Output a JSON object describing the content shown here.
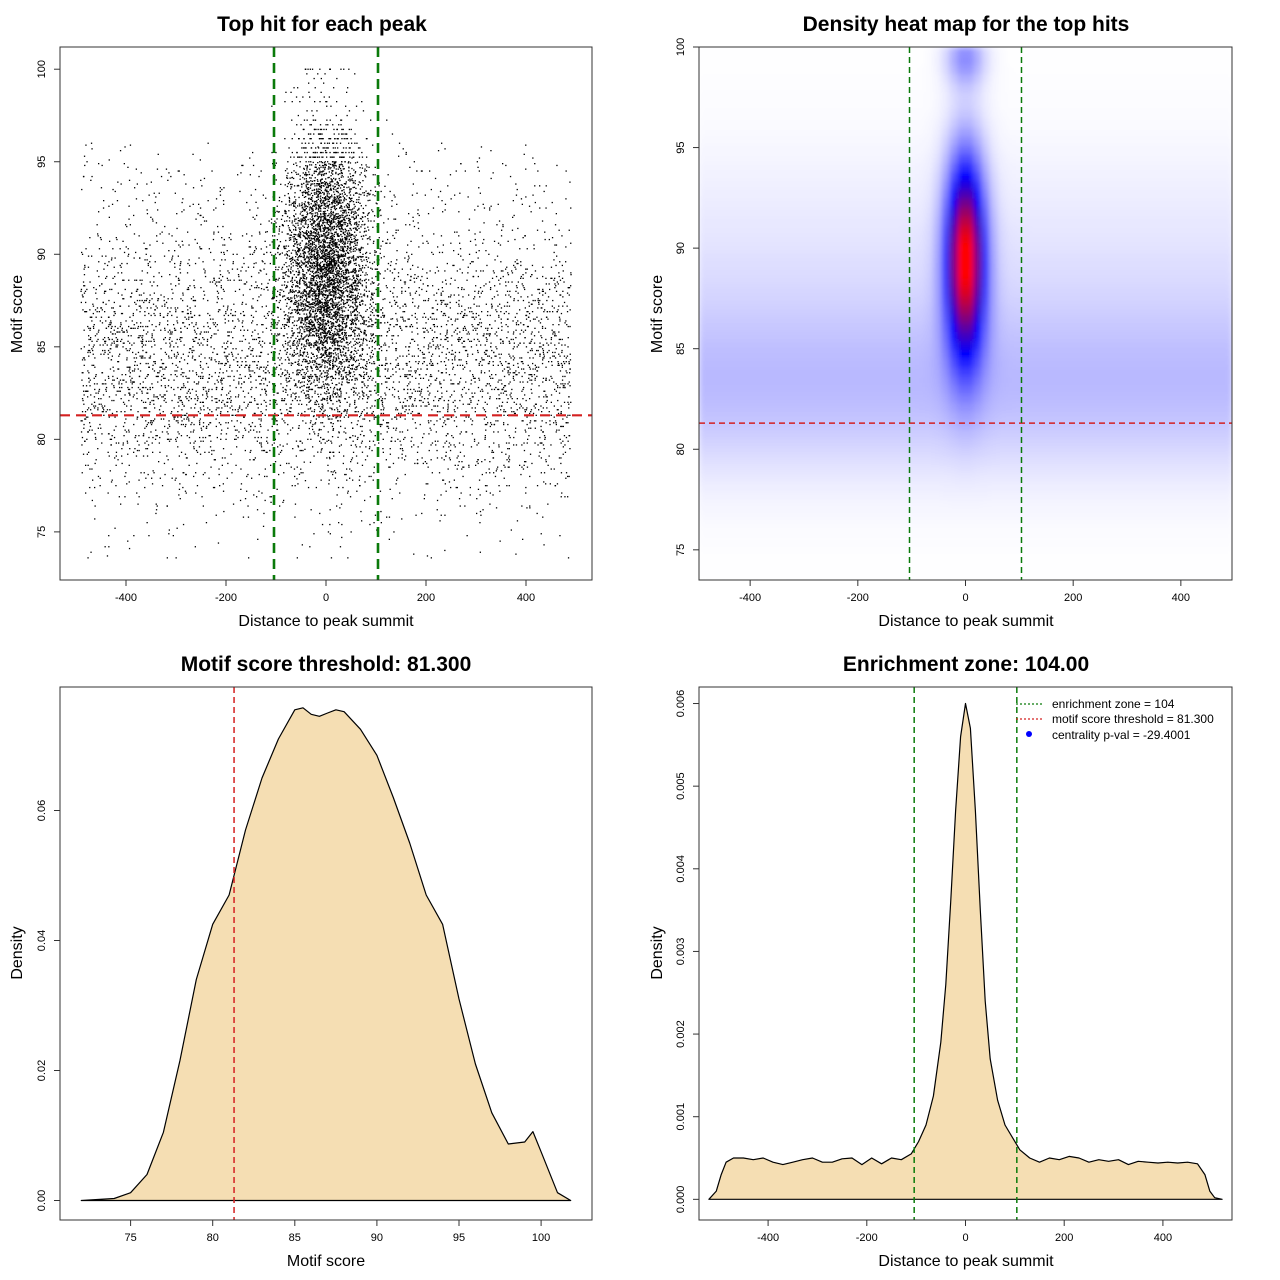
{
  "colors": {
    "threshold_red": "#d42020",
    "zone_green": "#0a7a0a",
    "density_fill": "#f5deb3",
    "points": "#000000",
    "heat_low": "#ffffff",
    "heat_mid": "#0000ff",
    "heat_high": "#ff0000",
    "legend_point": "#0000ff"
  },
  "chart_data": [
    {
      "id": "scatter",
      "type": "scatter",
      "title": "Top hit for each peak",
      "xlabel": "Distance to peak summit",
      "ylabel": "Motif score",
      "xlim": [
        -532,
        532
      ],
      "ylim": [
        72.4,
        101.2
      ],
      "xticks": [
        -400,
        -200,
        0,
        200,
        400
      ],
      "yticks": [
        75,
        80,
        85,
        90,
        95,
        100
      ],
      "threshold_y": 81.3,
      "zone_x": [
        -104,
        104
      ],
      "point_cloud": {
        "background_points": 5200,
        "central_points": 4600,
        "x_range": [
          -490,
          490
        ],
        "central_x_sd": 42,
        "score_range": [
          73.6,
          99.9
        ],
        "central_score_mean": 89.5,
        "central_score_sd": 3.6
      }
    },
    {
      "id": "heatmap",
      "type": "heatmap",
      "title": "Density heat map for the top hits",
      "xlabel": "Distance to peak summit",
      "ylabel": "Motif score",
      "xlim": [
        -495,
        495
      ],
      "ylim": [
        73.5,
        100
      ],
      "xticks": [
        -400,
        -200,
        0,
        200,
        400
      ],
      "yticks": [
        75,
        80,
        85,
        90,
        95,
        100
      ],
      "threshold_y": 81.3,
      "zone_x": [
        -104,
        104
      ],
      "peak": {
        "x": 0,
        "y": 89.5,
        "x_sd": 25,
        "y_sd": 3.4
      },
      "upper_tail": {
        "x": 0,
        "y": 99.5,
        "x_sd": 25,
        "y_sd": 1.0
      },
      "background": {
        "y": 83,
        "y_sd": 3
      }
    },
    {
      "id": "score_density",
      "type": "area",
      "title": "Motif score threshold: 81.300",
      "xlabel": "Motif score",
      "ylabel": "Density",
      "xlim": [
        70.7,
        103.1
      ],
      "ylim": [
        -0.003,
        0.079
      ],
      "xticks": [
        75,
        80,
        85,
        90,
        95,
        100
      ],
      "yticks": [
        0.0,
        0.02,
        0.04,
        0.06
      ],
      "ytick_labels": [
        "0.00",
        "0.02",
        "0.04",
        "0.06"
      ],
      "threshold_x": 81.3,
      "x": [
        72,
        74,
        75,
        76,
        77,
        78,
        79,
        80,
        81,
        82,
        83,
        84,
        85,
        85.5,
        86,
        86.5,
        87,
        87.5,
        88,
        89,
        90,
        91,
        92,
        93,
        94,
        95,
        96,
        97,
        98,
        99,
        99.5,
        100,
        101,
        101.8
      ],
      "y": [
        0.0,
        0.0003,
        0.0012,
        0.004,
        0.0105,
        0.0215,
        0.034,
        0.0425,
        0.047,
        0.057,
        0.065,
        0.071,
        0.0755,
        0.0758,
        0.0748,
        0.0745,
        0.075,
        0.0755,
        0.0752,
        0.0725,
        0.0685,
        0.062,
        0.055,
        0.047,
        0.0425,
        0.031,
        0.021,
        0.0135,
        0.0087,
        0.009,
        0.0106,
        0.0075,
        0.0012,
        0.0
      ]
    },
    {
      "id": "distance_density",
      "type": "area",
      "title": "Enrichment zone: 104.00",
      "xlabel": "Distance to peak summit",
      "ylabel": "Density",
      "xlim": [
        -540,
        540
      ],
      "ylim": [
        -0.00025,
        0.0062
      ],
      "xticks": [
        -400,
        -200,
        0,
        200,
        400
      ],
      "yticks": [
        0.0,
        0.001,
        0.002,
        0.003,
        0.004,
        0.005,
        0.006
      ],
      "ytick_labels": [
        "0.000",
        "0.001",
        "0.002",
        "0.003",
        "0.004",
        "0.005",
        "0.006"
      ],
      "zone_x": [
        -104,
        104
      ],
      "x": [
        -520,
        -505,
        -495,
        -485,
        -470,
        -450,
        -430,
        -410,
        -390,
        -370,
        -350,
        -330,
        -310,
        -290,
        -270,
        -250,
        -230,
        -210,
        -190,
        -170,
        -150,
        -130,
        -110,
        -95,
        -80,
        -65,
        -50,
        -40,
        -30,
        -20,
        -10,
        0,
        10,
        20,
        30,
        40,
        50,
        65,
        80,
        95,
        110,
        130,
        150,
        170,
        190,
        210,
        230,
        250,
        270,
        290,
        310,
        330,
        350,
        370,
        390,
        410,
        430,
        450,
        470,
        485,
        495,
        505,
        520
      ],
      "y": [
        0.0,
        0.0001,
        0.0003,
        0.00045,
        0.0005,
        0.0005,
        0.00048,
        0.0005,
        0.00045,
        0.00042,
        0.00045,
        0.00048,
        0.0005,
        0.00045,
        0.00045,
        0.00049,
        0.0005,
        0.00042,
        0.0005,
        0.00043,
        0.0005,
        0.00048,
        0.00055,
        0.0007,
        0.0009,
        0.00125,
        0.0019,
        0.0026,
        0.0036,
        0.0047,
        0.0056,
        0.006,
        0.0057,
        0.0047,
        0.0035,
        0.0024,
        0.0017,
        0.0012,
        0.0009,
        0.00075,
        0.0006,
        0.0005,
        0.00045,
        0.0005,
        0.00048,
        0.00052,
        0.0005,
        0.00045,
        0.00048,
        0.00046,
        0.00048,
        0.00042,
        0.00046,
        0.00045,
        0.00044,
        0.00045,
        0.00044,
        0.00045,
        0.00043,
        0.0003,
        0.0001,
        2e-05,
        0.0
      ],
      "legend": [
        {
          "label": "enrichment zone = 104",
          "style": "green-dotted-line"
        },
        {
          "label": "motif score threshold = 81.300",
          "style": "red-dotted-line"
        },
        {
          "label": "centrality p-val = -29.4001",
          "style": "blue-point"
        }
      ]
    }
  ]
}
